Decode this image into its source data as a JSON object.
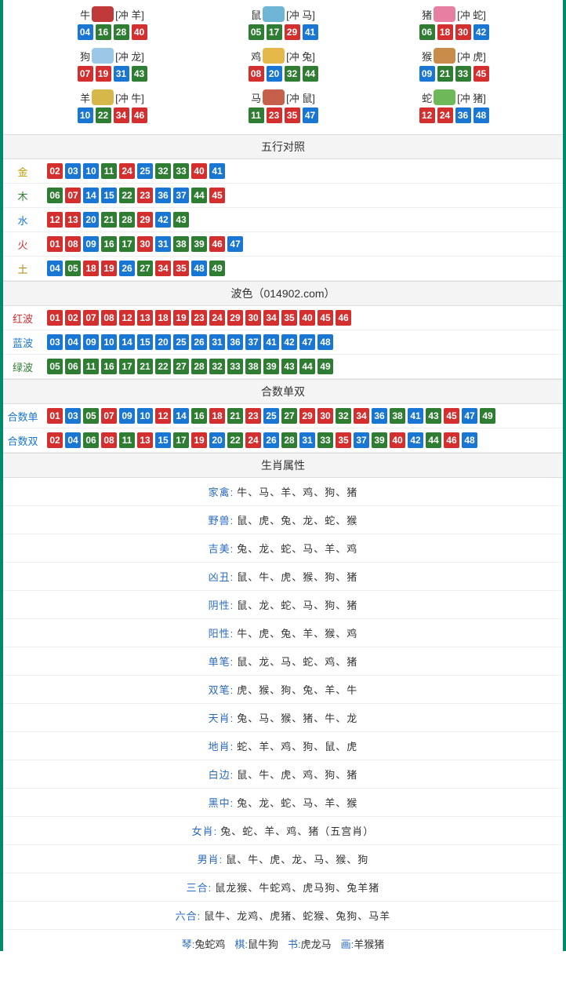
{
  "colors": {
    "red": "#d32f2f",
    "blue": "#1976d2",
    "green": "#2e7d32",
    "gold": "#c49a00",
    "wood": "#2e7d32",
    "water": "#1976d2",
    "fire": "#d32f2f",
    "earth": "#b8860b",
    "border": "#008a6c",
    "text": "#333333",
    "link": "#2a6ac4"
  },
  "ball_size": 20,
  "font_size": 13,
  "zodiac": [
    {
      "name": "牛",
      "clash": "[冲 羊]",
      "icon_color": "#c03a3a",
      "balls": [
        {
          "n": "04",
          "c": "blue"
        },
        {
          "n": "16",
          "c": "green"
        },
        {
          "n": "28",
          "c": "green"
        },
        {
          "n": "40",
          "c": "red"
        }
      ]
    },
    {
      "name": "鼠",
      "clash": "[冲 马]",
      "icon_color": "#6fb6d6",
      "balls": [
        {
          "n": "05",
          "c": "green"
        },
        {
          "n": "17",
          "c": "green"
        },
        {
          "n": "29",
          "c": "red"
        },
        {
          "n": "41",
          "c": "blue"
        }
      ]
    },
    {
      "name": "猪",
      "clash": "[冲 蛇]",
      "icon_color": "#e77fa3",
      "balls": [
        {
          "n": "06",
          "c": "green"
        },
        {
          "n": "18",
          "c": "red"
        },
        {
          "n": "30",
          "c": "red"
        },
        {
          "n": "42",
          "c": "blue"
        }
      ]
    },
    {
      "name": "狗",
      "clash": "[冲 龙]",
      "icon_color": "#9cc7e6",
      "balls": [
        {
          "n": "07",
          "c": "red"
        },
        {
          "n": "19",
          "c": "red"
        },
        {
          "n": "31",
          "c": "blue"
        },
        {
          "n": "43",
          "c": "green"
        }
      ]
    },
    {
      "name": "鸡",
      "clash": "[冲 兔]",
      "icon_color": "#e6b84a",
      "balls": [
        {
          "n": "08",
          "c": "red"
        },
        {
          "n": "20",
          "c": "blue"
        },
        {
          "n": "32",
          "c": "green"
        },
        {
          "n": "44",
          "c": "green"
        }
      ]
    },
    {
      "name": "猴",
      "clash": "[冲 虎]",
      "icon_color": "#c98b4a",
      "balls": [
        {
          "n": "09",
          "c": "blue"
        },
        {
          "n": "21",
          "c": "green"
        },
        {
          "n": "33",
          "c": "green"
        },
        {
          "n": "45",
          "c": "red"
        }
      ]
    },
    {
      "name": "羊",
      "clash": "[冲 牛]",
      "icon_color": "#d6b84a",
      "balls": [
        {
          "n": "10",
          "c": "blue"
        },
        {
          "n": "22",
          "c": "green"
        },
        {
          "n": "34",
          "c": "red"
        },
        {
          "n": "46",
          "c": "red"
        }
      ]
    },
    {
      "name": "马",
      "clash": "[冲 鼠]",
      "icon_color": "#c7604a",
      "balls": [
        {
          "n": "11",
          "c": "green"
        },
        {
          "n": "23",
          "c": "red"
        },
        {
          "n": "35",
          "c": "red"
        },
        {
          "n": "47",
          "c": "blue"
        }
      ]
    },
    {
      "name": "蛇",
      "clash": "[冲 猪]",
      "icon_color": "#6fb85a",
      "balls": [
        {
          "n": "12",
          "c": "red"
        },
        {
          "n": "24",
          "c": "red"
        },
        {
          "n": "36",
          "c": "blue"
        },
        {
          "n": "48",
          "c": "blue"
        }
      ]
    }
  ],
  "sections": {
    "wuxing": {
      "title": "五行对照",
      "rows": [
        {
          "label": "金",
          "label_color": "gold",
          "balls": [
            {
              "n": "02",
              "c": "red"
            },
            {
              "n": "03",
              "c": "blue"
            },
            {
              "n": "10",
              "c": "blue"
            },
            {
              "n": "11",
              "c": "green"
            },
            {
              "n": "24",
              "c": "red"
            },
            {
              "n": "25",
              "c": "blue"
            },
            {
              "n": "32",
              "c": "green"
            },
            {
              "n": "33",
              "c": "green"
            },
            {
              "n": "40",
              "c": "red"
            },
            {
              "n": "41",
              "c": "blue"
            }
          ]
        },
        {
          "label": "木",
          "label_color": "wood",
          "balls": [
            {
              "n": "06",
              "c": "green"
            },
            {
              "n": "07",
              "c": "red"
            },
            {
              "n": "14",
              "c": "blue"
            },
            {
              "n": "15",
              "c": "blue"
            },
            {
              "n": "22",
              "c": "green"
            },
            {
              "n": "23",
              "c": "red"
            },
            {
              "n": "36",
              "c": "blue"
            },
            {
              "n": "37",
              "c": "blue"
            },
            {
              "n": "44",
              "c": "green"
            },
            {
              "n": "45",
              "c": "red"
            }
          ]
        },
        {
          "label": "水",
          "label_color": "water",
          "balls": [
            {
              "n": "12",
              "c": "red"
            },
            {
              "n": "13",
              "c": "red"
            },
            {
              "n": "20",
              "c": "blue"
            },
            {
              "n": "21",
              "c": "green"
            },
            {
              "n": "28",
              "c": "green"
            },
            {
              "n": "29",
              "c": "red"
            },
            {
              "n": "42",
              "c": "blue"
            },
            {
              "n": "43",
              "c": "green"
            }
          ]
        },
        {
          "label": "火",
          "label_color": "fire",
          "balls": [
            {
              "n": "01",
              "c": "red"
            },
            {
              "n": "08",
              "c": "red"
            },
            {
              "n": "09",
              "c": "blue"
            },
            {
              "n": "16",
              "c": "green"
            },
            {
              "n": "17",
              "c": "green"
            },
            {
              "n": "30",
              "c": "red"
            },
            {
              "n": "31",
              "c": "blue"
            },
            {
              "n": "38",
              "c": "green"
            },
            {
              "n": "39",
              "c": "green"
            },
            {
              "n": "46",
              "c": "red"
            },
            {
              "n": "47",
              "c": "blue"
            }
          ]
        },
        {
          "label": "土",
          "label_color": "earth",
          "balls": [
            {
              "n": "04",
              "c": "blue"
            },
            {
              "n": "05",
              "c": "green"
            },
            {
              "n": "18",
              "c": "red"
            },
            {
              "n": "19",
              "c": "red"
            },
            {
              "n": "26",
              "c": "blue"
            },
            {
              "n": "27",
              "c": "green"
            },
            {
              "n": "34",
              "c": "red"
            },
            {
              "n": "35",
              "c": "red"
            },
            {
              "n": "48",
              "c": "blue"
            },
            {
              "n": "49",
              "c": "green"
            }
          ]
        }
      ]
    },
    "bose": {
      "title": "波色（014902.com）",
      "rows": [
        {
          "label": "红波",
          "label_color": "fire",
          "balls": [
            {
              "n": "01",
              "c": "red"
            },
            {
              "n": "02",
              "c": "red"
            },
            {
              "n": "07",
              "c": "red"
            },
            {
              "n": "08",
              "c": "red"
            },
            {
              "n": "12",
              "c": "red"
            },
            {
              "n": "13",
              "c": "red"
            },
            {
              "n": "18",
              "c": "red"
            },
            {
              "n": "19",
              "c": "red"
            },
            {
              "n": "23",
              "c": "red"
            },
            {
              "n": "24",
              "c": "red"
            },
            {
              "n": "29",
              "c": "red"
            },
            {
              "n": "30",
              "c": "red"
            },
            {
              "n": "34",
              "c": "red"
            },
            {
              "n": "35",
              "c": "red"
            },
            {
              "n": "40",
              "c": "red"
            },
            {
              "n": "45",
              "c": "red"
            },
            {
              "n": "46",
              "c": "red"
            }
          ]
        },
        {
          "label": "蓝波",
          "label_color": "water",
          "balls": [
            {
              "n": "03",
              "c": "blue"
            },
            {
              "n": "04",
              "c": "blue"
            },
            {
              "n": "09",
              "c": "blue"
            },
            {
              "n": "10",
              "c": "blue"
            },
            {
              "n": "14",
              "c": "blue"
            },
            {
              "n": "15",
              "c": "blue"
            },
            {
              "n": "20",
              "c": "blue"
            },
            {
              "n": "25",
              "c": "blue"
            },
            {
              "n": "26",
              "c": "blue"
            },
            {
              "n": "31",
              "c": "blue"
            },
            {
              "n": "36",
              "c": "blue"
            },
            {
              "n": "37",
              "c": "blue"
            },
            {
              "n": "41",
              "c": "blue"
            },
            {
              "n": "42",
              "c": "blue"
            },
            {
              "n": "47",
              "c": "blue"
            },
            {
              "n": "48",
              "c": "blue"
            }
          ]
        },
        {
          "label": "绿波",
          "label_color": "wood",
          "balls": [
            {
              "n": "05",
              "c": "green"
            },
            {
              "n": "06",
              "c": "green"
            },
            {
              "n": "11",
              "c": "green"
            },
            {
              "n": "16",
              "c": "green"
            },
            {
              "n": "17",
              "c": "green"
            },
            {
              "n": "21",
              "c": "green"
            },
            {
              "n": "22",
              "c": "green"
            },
            {
              "n": "27",
              "c": "green"
            },
            {
              "n": "28",
              "c": "green"
            },
            {
              "n": "32",
              "c": "green"
            },
            {
              "n": "33",
              "c": "green"
            },
            {
              "n": "38",
              "c": "green"
            },
            {
              "n": "39",
              "c": "green"
            },
            {
              "n": "43",
              "c": "green"
            },
            {
              "n": "44",
              "c": "green"
            },
            {
              "n": "49",
              "c": "green"
            }
          ]
        }
      ]
    },
    "heshu": {
      "title": "合数单双",
      "rows": [
        {
          "label": "合数单",
          "label_color": "water",
          "balls": [
            {
              "n": "01",
              "c": "red"
            },
            {
              "n": "03",
              "c": "blue"
            },
            {
              "n": "05",
              "c": "green"
            },
            {
              "n": "07",
              "c": "red"
            },
            {
              "n": "09",
              "c": "blue"
            },
            {
              "n": "10",
              "c": "blue"
            },
            {
              "n": "12",
              "c": "red"
            },
            {
              "n": "14",
              "c": "blue"
            },
            {
              "n": "16",
              "c": "green"
            },
            {
              "n": "18",
              "c": "red"
            },
            {
              "n": "21",
              "c": "green"
            },
            {
              "n": "23",
              "c": "red"
            },
            {
              "n": "25",
              "c": "blue"
            },
            {
              "n": "27",
              "c": "green"
            },
            {
              "n": "29",
              "c": "red"
            },
            {
              "n": "30",
              "c": "red"
            },
            {
              "n": "32",
              "c": "green"
            },
            {
              "n": "34",
              "c": "red"
            },
            {
              "n": "36",
              "c": "blue"
            },
            {
              "n": "38",
              "c": "green"
            },
            {
              "n": "41",
              "c": "blue"
            },
            {
              "n": "43",
              "c": "green"
            },
            {
              "n": "45",
              "c": "red"
            },
            {
              "n": "47",
              "c": "blue"
            },
            {
              "n": "49",
              "c": "green"
            }
          ]
        },
        {
          "label": "合数双",
          "label_color": "water",
          "balls": [
            {
              "n": "02",
              "c": "red"
            },
            {
              "n": "04",
              "c": "blue"
            },
            {
              "n": "06",
              "c": "green"
            },
            {
              "n": "08",
              "c": "red"
            },
            {
              "n": "11",
              "c": "green"
            },
            {
              "n": "13",
              "c": "red"
            },
            {
              "n": "15",
              "c": "blue"
            },
            {
              "n": "17",
              "c": "green"
            },
            {
              "n": "19",
              "c": "red"
            },
            {
              "n": "20",
              "c": "blue"
            },
            {
              "n": "22",
              "c": "green"
            },
            {
              "n": "24",
              "c": "red"
            },
            {
              "n": "26",
              "c": "blue"
            },
            {
              "n": "28",
              "c": "green"
            },
            {
              "n": "31",
              "c": "blue"
            },
            {
              "n": "33",
              "c": "green"
            },
            {
              "n": "35",
              "c": "red"
            },
            {
              "n": "37",
              "c": "blue"
            },
            {
              "n": "39",
              "c": "green"
            },
            {
              "n": "40",
              "c": "red"
            },
            {
              "n": "42",
              "c": "blue"
            },
            {
              "n": "44",
              "c": "green"
            },
            {
              "n": "46",
              "c": "red"
            },
            {
              "n": "48",
              "c": "blue"
            }
          ]
        }
      ]
    }
  },
  "attributes": {
    "title": "生肖属性",
    "rows": [
      {
        "label": "家禽:",
        "label_color": "#2a6ac4",
        "value": "牛、马、羊、鸡、狗、猪"
      },
      {
        "label": "野兽:",
        "label_color": "#2a6ac4",
        "value": "鼠、虎、兔、龙、蛇、猴"
      },
      {
        "label": "吉美:",
        "label_color": "#2a6ac4",
        "value": "兔、龙、蛇、马、羊、鸡"
      },
      {
        "label": "凶丑:",
        "label_color": "#2a6ac4",
        "value": "鼠、牛、虎、猴、狗、猪"
      },
      {
        "label": "阴性:",
        "label_color": "#2a6ac4",
        "value": "鼠、龙、蛇、马、狗、猪"
      },
      {
        "label": "阳性:",
        "label_color": "#2a6ac4",
        "value": "牛、虎、兔、羊、猴、鸡"
      },
      {
        "label": "单笔:",
        "label_color": "#2a6ac4",
        "value": "鼠、龙、马、蛇、鸡、猪"
      },
      {
        "label": "双笔:",
        "label_color": "#2a6ac4",
        "value": "虎、猴、狗、兔、羊、牛"
      },
      {
        "label": "天肖:",
        "label_color": "#2a6ac4",
        "value": "兔、马、猴、猪、牛、龙"
      },
      {
        "label": "地肖:",
        "label_color": "#2a6ac4",
        "value": "蛇、羊、鸡、狗、鼠、虎"
      },
      {
        "label": "白边:",
        "label_color": "#2a6ac4",
        "value": "鼠、牛、虎、鸡、狗、猪"
      },
      {
        "label": "黑中:",
        "label_color": "#2a6ac4",
        "value": "兔、龙、蛇、马、羊、猴"
      },
      {
        "label": "女肖:",
        "label_color": "#2a6ac4",
        "value": "兔、蛇、羊、鸡、猪（五宫肖）"
      },
      {
        "label": "男肖:",
        "label_color": "#2a6ac4",
        "value": "鼠、牛、虎、龙、马、猴、狗"
      },
      {
        "label": "三合:",
        "label_color": "#2a6ac4",
        "value": "鼠龙猴、牛蛇鸡、虎马狗、兔羊猪"
      },
      {
        "label": "六合:",
        "label_color": "#2a6ac4",
        "value": "鼠牛、龙鸡、虎猪、蛇猴、兔狗、马羊"
      }
    ]
  },
  "bottom": [
    {
      "label": "琴:",
      "label_color": "#2a6ac4",
      "value": "兔蛇鸡"
    },
    {
      "label": "棋:",
      "label_color": "#2a6ac4",
      "value": "鼠牛狗"
    },
    {
      "label": "书:",
      "label_color": "#2a6ac4",
      "value": "虎龙马"
    },
    {
      "label": "画:",
      "label_color": "#2a6ac4",
      "value": "羊猴猪"
    }
  ]
}
